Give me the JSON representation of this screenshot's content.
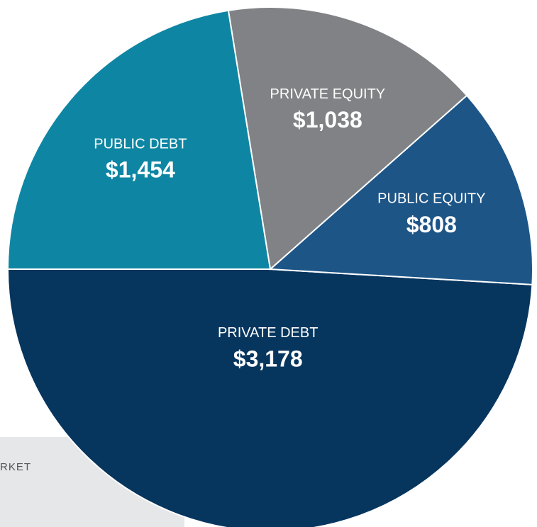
{
  "chart_data": {
    "type": "pie",
    "categories": [
      "PRIVATE DEBT",
      "PUBLIC EQUITY",
      "PRIVATE EQUITY",
      "PUBLIC DEBT"
    ],
    "values": [
      3178,
      808,
      1038,
      1454
    ],
    "value_labels": [
      "$3,178",
      "$808",
      "$1,038",
      "$1,454"
    ],
    "colors": [
      "#06355e",
      "#1d5587",
      "#808285",
      "#0e86a3"
    ],
    "start_angle": 180,
    "annotation": "RKET"
  }
}
